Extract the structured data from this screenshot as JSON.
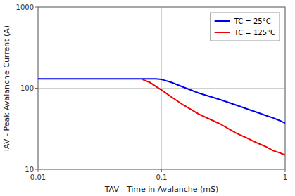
{
  "chart_data": {
    "type": "line",
    "xlabel": "TAV - Time in Avalanche (mS)",
    "ylabel": "IAV - Peak Avalanche Current (A)",
    "log": true,
    "xlim": [
      0.01,
      1.0
    ],
    "ylim": [
      10,
      1000
    ],
    "xticks": [
      0.01,
      0.1,
      1
    ],
    "yticks": [
      10,
      100,
      1000
    ],
    "grid": true,
    "legend": "upper right",
    "series": [
      {
        "name": "TC = 25°C",
        "color": "#0000EE",
        "x": [
          0.01,
          0.02,
          0.03,
          0.04,
          0.05,
          0.06,
          0.07,
          0.08,
          0.09,
          0.1,
          0.12,
          0.15,
          0.2,
          0.3,
          0.4,
          0.5,
          0.6,
          0.7,
          0.8,
          0.9,
          1.0
        ],
        "values": [
          130,
          130,
          130,
          130,
          130,
          130,
          130,
          130,
          130,
          128,
          118,
          103,
          87,
          72,
          62,
          55,
          50,
          46,
          43,
          40,
          37
        ]
      },
      {
        "name": "TC = 125°C",
        "color": "#EE0000",
        "x": [
          0.07,
          0.08,
          0.09,
          0.1,
          0.12,
          0.15,
          0.2,
          0.3,
          0.4,
          0.5,
          0.6,
          0.7,
          0.8,
          0.9,
          1.0
        ],
        "values": [
          128,
          118,
          105,
          95,
          78,
          62,
          48,
          36,
          28,
          24,
          21,
          19,
          17,
          16,
          15
        ]
      }
    ]
  }
}
